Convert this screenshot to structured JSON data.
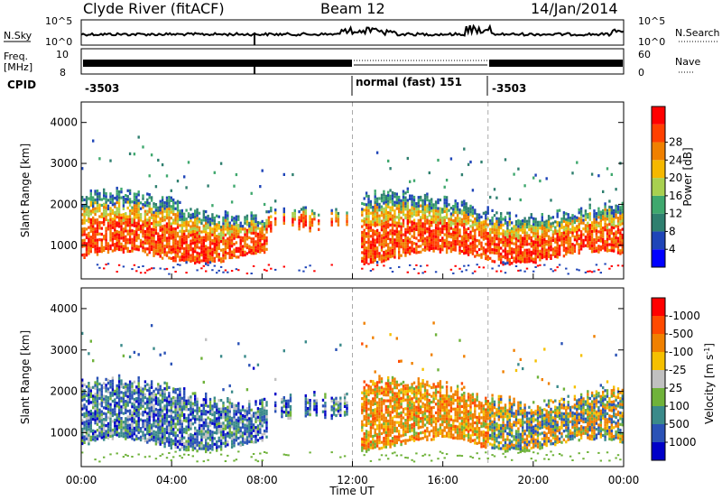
{
  "header": {
    "station": "Clyde River (fitACF)",
    "beam": "Beam 12",
    "date": "14/Jan/2014"
  },
  "top_panels": {
    "nsky_label": "N.Sky",
    "nsky_ticks": [
      "10^5",
      "10^0"
    ],
    "nsearch_label": "N.Search",
    "nsearch_ticks": [
      "10^5",
      "10^0"
    ],
    "freq_label": "Freq.",
    "freq_unit": "[MHz]",
    "freq_ticks": [
      "10",
      "8"
    ],
    "nave_label": "Nave",
    "nave_ticks": [
      "60",
      "0"
    ],
    "cpid_label": "CPID",
    "cpid_segments": [
      {
        "label": "-3503",
        "start_hour": 0,
        "end_hour": 12
      },
      {
        "label": "normal (fast) 151",
        "start_hour": 12,
        "end_hour": 18
      },
      {
        "label": "-3503",
        "start_hour": 18,
        "end_hour": 24
      }
    ]
  },
  "power_colorbar": {
    "title": "Power [dB]",
    "colors": [
      "#0000ff",
      "#1f45b8",
      "#2f7f6f",
      "#3fa86e",
      "#a8d050",
      "#f5b800",
      "#f08000",
      "#ff4000",
      "#ff0000"
    ],
    "ticks": [
      "4",
      "8",
      "12",
      "16",
      "20",
      "24",
      "28"
    ]
  },
  "velocity_colorbar": {
    "title": "Velocity [m s^-1]",
    "colors": [
      "#0000c8",
      "#2a52b6",
      "#3a8a8a",
      "#6fb23a",
      "#c0c0c0",
      "#f5c000",
      "#f08000",
      "#ff4a00",
      "#ff0000"
    ],
    "ticks": [
      "1000",
      "500",
      "100",
      "25",
      "-25",
      "-100",
      "-500",
      "-1000"
    ]
  },
  "chart_data": [
    {
      "type": "heatmap",
      "panel": "power",
      "ylabel": "Slant Range [km]",
      "xlim": [
        0,
        24
      ],
      "ylim": [
        180,
        4500
      ],
      "y_ticks": [
        1000,
        2000,
        3000,
        4000
      ],
      "x_ticks": [
        0,
        4,
        8,
        12,
        16,
        20,
        24
      ],
      "x_tick_labels": [
        "00:00",
        "04:00",
        "08:00",
        "12:00",
        "16:00",
        "20:00",
        "00:00"
      ],
      "dashed_lines_hours": [
        12,
        18
      ],
      "scatter_band_km": [
        600,
        2200
      ],
      "peak_power_band_km": [
        800,
        1500
      ]
    },
    {
      "type": "heatmap",
      "panel": "velocity",
      "ylabel": "Slant Range [km]",
      "xlabel": "Time UT",
      "xlim": [
        0,
        24
      ],
      "ylim": [
        180,
        4500
      ],
      "y_ticks": [
        1000,
        2000,
        3000,
        4000
      ],
      "x_ticks": [
        0,
        4,
        8,
        12,
        16,
        20,
        24
      ],
      "x_tick_labels": [
        "00:00",
        "04:00",
        "08:00",
        "12:00",
        "16:00",
        "20:00",
        "00:00"
      ],
      "dashed_lines_hours": [
        12,
        18
      ],
      "scatter_band_km": [
        600,
        2200
      ],
      "dominant_velocity_before_12h": "positive (blue/green)",
      "dominant_velocity_after_12h": "negative (orange)"
    }
  ]
}
